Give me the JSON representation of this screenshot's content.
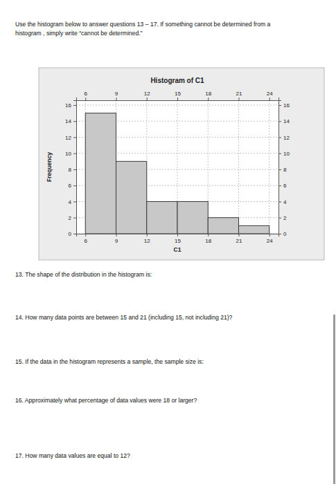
{
  "header": {
    "lines": [
      "Use the histogram below to answer questions 13 – 17. If something cannot be determined from a",
      "histogram , simply write “cannot be determined.”"
    ]
  },
  "chart_data": {
    "type": "histogram",
    "title": "Histogram of C1",
    "x_label": "C1",
    "y_label": "Frequency",
    "bins": [
      6,
      9,
      12,
      15,
      18,
      21,
      24
    ],
    "values": [
      15,
      9,
      4,
      4,
      2,
      1
    ],
    "color": "#c8c8c8",
    "xlim": [
      5.1,
      24.9
    ],
    "xticks": [
      6,
      9,
      12,
      15,
      18,
      21,
      24
    ],
    "ylim": [
      0,
      16.6
    ],
    "yticks": [
      0,
      2,
      4,
      6,
      8,
      10,
      12,
      14,
      16
    ],
    "grid": true
  },
  "questions": [
    "13. The shape of the distribution in the histogram is:",
    "14. How many data points are between 15 and 21 (including 15, not including 21)?",
    "15. If the data in the histogram represents a sample, the sample size is:",
    "16. Approximately what percentage of data values were 18 or larger?",
    "17. How many data values are equal to 12?"
  ]
}
